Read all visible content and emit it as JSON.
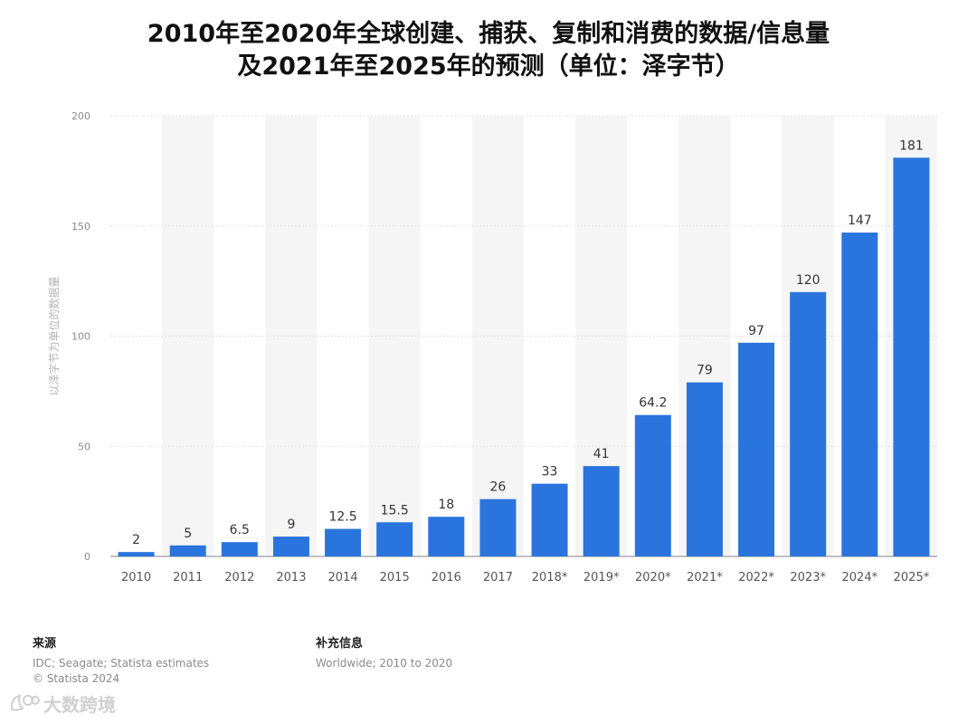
{
  "title": {
    "line1": "2010年至2020年全球创建、捕获、复制和消费的数据/信息量",
    "line2": "及2021年至2025年的预测（单位：泽字节）"
  },
  "chart_data": {
    "type": "bar",
    "title": "2010年至2020年全球创建、捕获、复制和消费的数据/信息量及2021年至2025年的预测（单位：泽字节）",
    "xlabel": "",
    "ylabel": "以泽字节为单位的数据量",
    "ylim": [
      0,
      200
    ],
    "yticks": [
      0,
      50,
      100,
      150,
      200
    ],
    "grid": true,
    "categories": [
      "2010",
      "2011",
      "2012",
      "2013",
      "2014",
      "2015",
      "2016",
      "2017",
      "2018*",
      "2019*",
      "2020*",
      "2021*",
      "2022*",
      "2023*",
      "2024*",
      "2025*"
    ],
    "values": [
      2,
      5,
      6.5,
      9,
      12.5,
      15.5,
      18,
      26,
      33,
      41,
      64.2,
      79,
      97,
      120,
      147,
      181
    ],
    "value_labels": [
      "2",
      "5",
      "6.5",
      "9",
      "12.5",
      "15.5",
      "18",
      "26",
      "33",
      "41",
      "64.2",
      "79",
      "97",
      "120",
      "147",
      "181"
    ],
    "bar_color": "#2a74dd"
  },
  "footer": {
    "source_heading": "来源",
    "source_lines": [
      "IDC; Seagate; Statista estimates",
      "© Statista 2024"
    ],
    "info_heading": "补充信息",
    "info_lines": [
      "Worldwide; 2010 to 2020"
    ]
  },
  "watermark": {
    "text": "大数跨境",
    "icon": "logo-icon"
  }
}
